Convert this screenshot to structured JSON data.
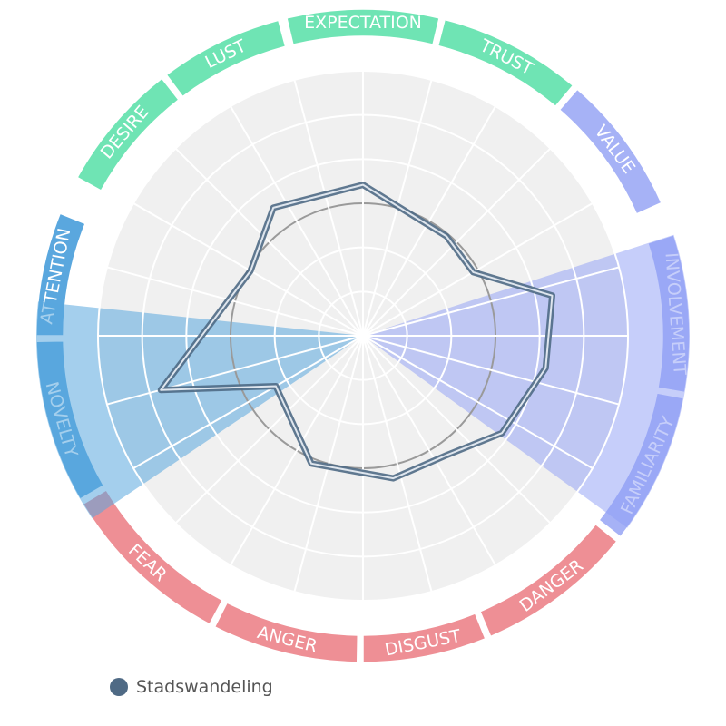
{
  "chart_data": {
    "type": "radar",
    "categories": [
      {
        "label": "EXPECTATION",
        "group": "green"
      },
      {
        "label": "TRUST",
        "group": "green"
      },
      {
        "label": "VALUE",
        "group": "purple"
      },
      {
        "label": "INVOLVEMENT",
        "group": "purple"
      },
      {
        "label": "FAMILIARITY",
        "group": "purple"
      },
      {
        "label": "DANGER",
        "group": "red"
      },
      {
        "label": "DISGUST",
        "group": "red"
      },
      {
        "label": "ANGER",
        "group": "red"
      },
      {
        "label": "FEAR",
        "group": "red"
      },
      {
        "label": "NOVELTY",
        "group": "blue"
      },
      {
        "label": "ATTENTION",
        "group": "blue"
      },
      {
        "label": "DESIRE",
        "group": "green"
      },
      {
        "label": "LUST",
        "group": "green"
      }
    ],
    "group_colors": {
      "green": "#6fe4b4",
      "purple": "#a6b2f6",
      "red": "#ee8f95",
      "blue": "#5aa7de"
    },
    "rings": 6,
    "spokes": 24,
    "reference_ring": 3,
    "series": [
      {
        "name": "Stadswandeling",
        "color": "#4f6a85",
        "points": [
          {
            "angle": 0,
            "r": 0.57
          },
          {
            "angle": 40,
            "r": 0.49
          },
          {
            "angle": 60,
            "r": 0.48
          },
          {
            "angle": 78,
            "r": 0.73
          },
          {
            "angle": 100,
            "r": 0.7
          },
          {
            "angle": 125,
            "r": 0.64
          },
          {
            "angle": 145,
            "r": 0.55
          },
          {
            "angle": 168,
            "r": 0.55
          },
          {
            "angle": 202,
            "r": 0.52
          },
          {
            "angle": 240,
            "r": 0.38
          },
          {
            "angle": 255,
            "r": 0.79
          },
          {
            "angle": 300,
            "r": 0.49
          },
          {
            "angle": 325,
            "r": 0.59
          }
        ]
      }
    ],
    "highlights": [
      {
        "group": "purple",
        "from_angle": 72,
        "to_angle": 126,
        "color": "#8e9ef6",
        "opacity": 0.5
      },
      {
        "group": "blue",
        "from_angle": 236,
        "to_angle": 276,
        "color": "#5aa7de",
        "opacity": 0.55
      }
    ],
    "legend": {
      "position": "bottom-left"
    }
  }
}
